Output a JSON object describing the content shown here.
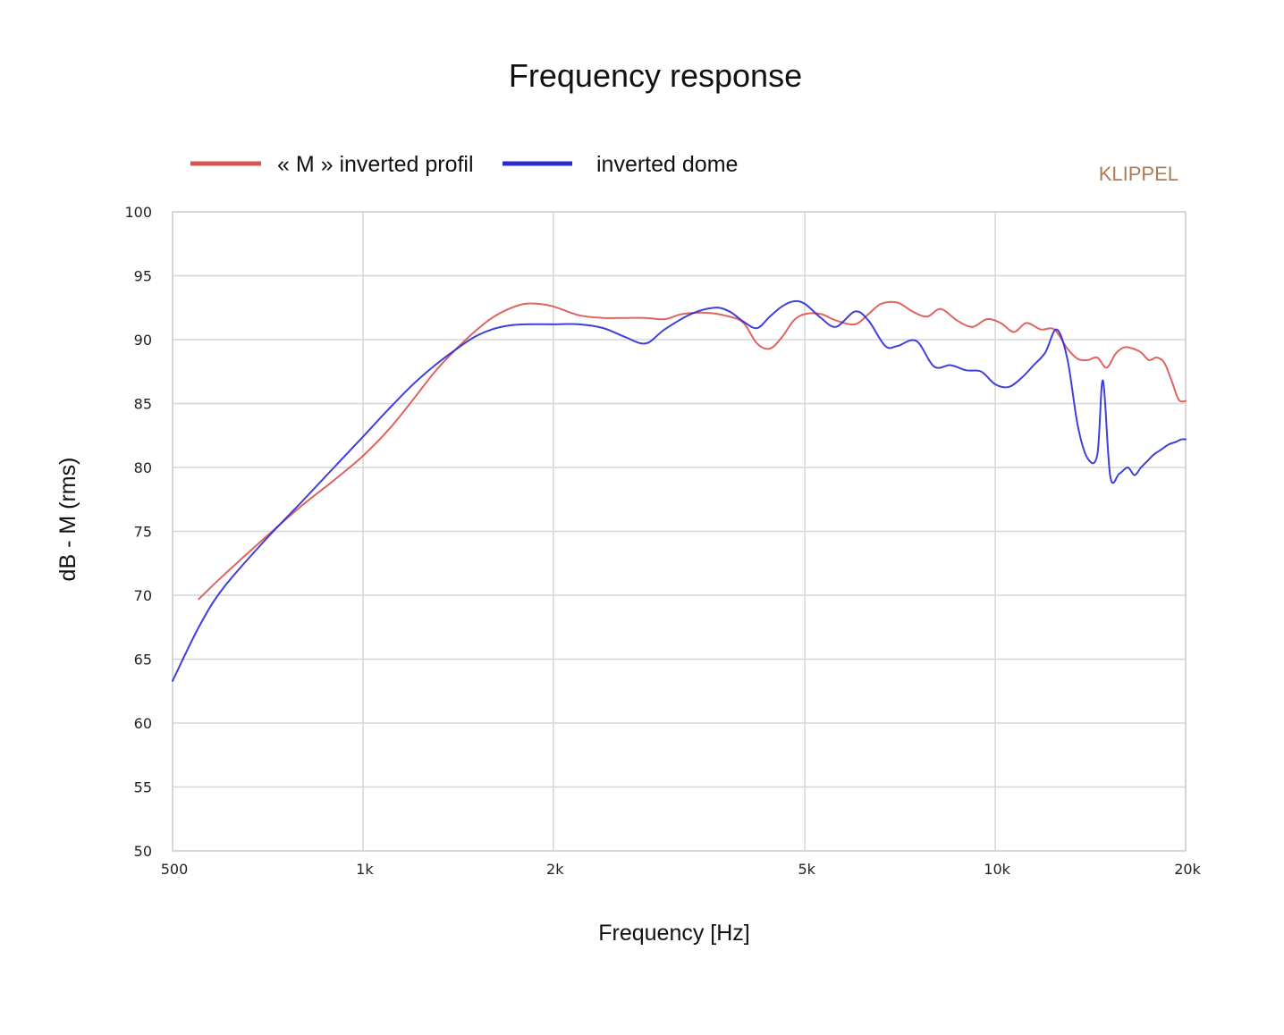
{
  "chart_data": {
    "type": "line",
    "title": "Frequency response",
    "xlabel": "Frequency [Hz]",
    "ylabel": "dB - M (rms)",
    "brand": "KLIPPEL",
    "x_scale": "log",
    "xlim": [
      500,
      20000
    ],
    "ylim": [
      50,
      100
    ],
    "x_ticks": [
      {
        "value": 500,
        "label": "500"
      },
      {
        "value": 1000,
        "label": "1k"
      },
      {
        "value": 2000,
        "label": "2k"
      },
      {
        "value": 5000,
        "label": "5k"
      },
      {
        "value": 10000,
        "label": "10k"
      },
      {
        "value": 20000,
        "label": "20k"
      }
    ],
    "y_ticks": [
      {
        "value": 100,
        "label": "100"
      },
      {
        "value": 95,
        "label": "95"
      },
      {
        "value": 90,
        "label": "90"
      },
      {
        "value": 85,
        "label": "85"
      },
      {
        "value": 80,
        "label": "80"
      },
      {
        "value": 75,
        "label": "75"
      },
      {
        "value": 70,
        "label": "70"
      },
      {
        "value": 65,
        "label": "65"
      },
      {
        "value": 60,
        "label": "60"
      },
      {
        "value": 55,
        "label": "55"
      },
      {
        "value": 50,
        "label": "50"
      }
    ],
    "grid": true,
    "legend_position": "top-left",
    "series": [
      {
        "name": "« M » inverted profil",
        "color": "#d9534f",
        "x": [
          550,
          600,
          700,
          800,
          900,
          1000,
          1100,
          1200,
          1300,
          1400,
          1500,
          1600,
          1700,
          1800,
          1900,
          2000,
          2200,
          2400,
          2600,
          2800,
          3000,
          3200,
          3500,
          3800,
          4000,
          4200,
          4400,
          4600,
          4800,
          5000,
          5300,
          5600,
          6000,
          6300,
          6600,
          7000,
          7400,
          7800,
          8200,
          8700,
          9200,
          9700,
          10200,
          10700,
          11200,
          11800,
          12400,
          13000,
          13500,
          14000,
          14500,
          15000,
          15500,
          16000,
          16500,
          17000,
          17500,
          18000,
          18500,
          19000,
          19500,
          20000
        ],
        "y": [
          69.7,
          71.5,
          74.5,
          77.0,
          79.0,
          80.9,
          83.0,
          85.3,
          87.5,
          89.2,
          90.6,
          91.7,
          92.4,
          92.8,
          92.8,
          92.6,
          91.9,
          91.7,
          91.7,
          91.7,
          91.6,
          92.0,
          92.1,
          91.8,
          91.3,
          89.7,
          89.3,
          90.2,
          91.5,
          92.0,
          92.0,
          91.5,
          91.2,
          92.0,
          92.8,
          92.9,
          92.2,
          91.8,
          92.4,
          91.5,
          91.0,
          91.6,
          91.3,
          90.6,
          91.3,
          90.8,
          90.8,
          89.3,
          88.5,
          88.4,
          88.6,
          87.8,
          88.9,
          89.4,
          89.3,
          89.0,
          88.4,
          88.6,
          88.2,
          86.8,
          85.3,
          85.2
        ]
      },
      {
        "name": "inverted dome",
        "color": "#2a2ad6",
        "x": [
          500,
          550,
          600,
          700,
          800,
          900,
          1000,
          1100,
          1200,
          1300,
          1400,
          1500,
          1600,
          1700,
          1800,
          2000,
          2200,
          2400,
          2600,
          2800,
          3000,
          3300,
          3600,
          3800,
          4000,
          4200,
          4400,
          4600,
          4800,
          5000,
          5300,
          5600,
          6000,
          6300,
          6700,
          7000,
          7500,
          8000,
          8500,
          9000,
          9500,
          10000,
          10500,
          11000,
          11500,
          12000,
          12500,
          13000,
          13500,
          14000,
          14500,
          14800,
          15200,
          15700,
          16200,
          16600,
          17000,
          17400,
          17800,
          18300,
          18800,
          19300,
          19700,
          20000
        ],
        "y": [
          63.3,
          67.5,
          70.5,
          74.3,
          77.3,
          80.0,
          82.4,
          84.6,
          86.5,
          88.0,
          89.2,
          90.2,
          90.8,
          91.1,
          91.2,
          91.2,
          91.2,
          90.9,
          90.2,
          89.7,
          90.8,
          92.0,
          92.5,
          92.2,
          91.4,
          90.9,
          91.8,
          92.6,
          93.0,
          92.8,
          91.7,
          91.0,
          92.2,
          91.5,
          89.5,
          89.5,
          89.9,
          87.9,
          88.0,
          87.6,
          87.5,
          86.5,
          86.3,
          87.0,
          88.0,
          89.0,
          90.8,
          88.5,
          83.3,
          80.7,
          81.0,
          86.8,
          79.3,
          79.5,
          80.0,
          79.4,
          80.0,
          80.5,
          81.0,
          81.4,
          81.8,
          82.0,
          82.2,
          82.2
        ]
      }
    ]
  }
}
